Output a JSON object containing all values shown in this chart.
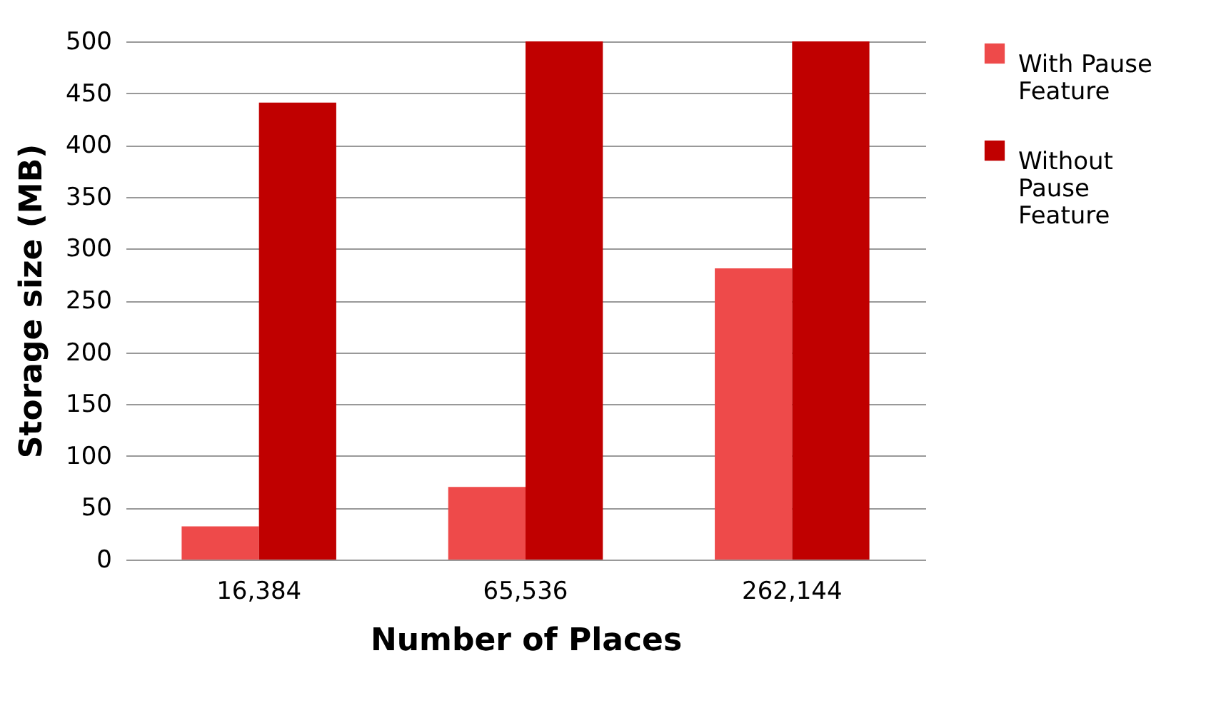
{
  "chart_data": {
    "type": "bar",
    "xlabel": "Number of Places",
    "ylabel": "Storage size (MB)",
    "categories": [
      "16,384",
      "65,536",
      "262,144"
    ],
    "series": [
      {
        "name": "With Pause Feature",
        "color": "#ee4a4a",
        "values": [
          32,
          70,
          281
        ]
      },
      {
        "name": "Without Pause Feature",
        "color": "#c00000",
        "values": [
          441,
          500,
          500
        ]
      }
    ],
    "ylim": [
      0,
      500
    ],
    "yticks": [
      0,
      50,
      100,
      150,
      200,
      250,
      300,
      350,
      400,
      450,
      500
    ],
    "grid": "y",
    "legend": "right"
  }
}
